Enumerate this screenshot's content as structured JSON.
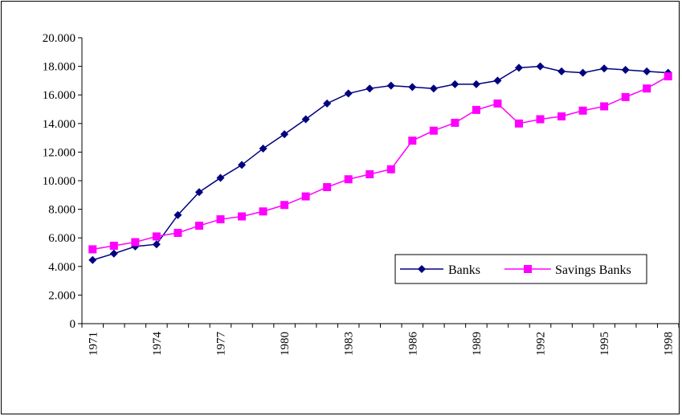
{
  "chart_data": {
    "type": "line",
    "title": "",
    "xlabel": "",
    "ylabel": "",
    "x": [
      1971,
      1972,
      1973,
      1974,
      1975,
      1976,
      1977,
      1978,
      1979,
      1980,
      1981,
      1982,
      1983,
      1984,
      1985,
      1986,
      1987,
      1988,
      1989,
      1990,
      1991,
      1992,
      1993,
      1994,
      1995,
      1996,
      1997,
      1998
    ],
    "x_tick_labels": [
      "1971",
      "1974",
      "1977",
      "1980",
      "1983",
      "1986",
      "1989",
      "1992",
      "1995",
      "1998"
    ],
    "ylim": [
      0,
      20000
    ],
    "y_tick_labels": [
      "0",
      "2.000",
      "4.000",
      "6.000",
      "8.000",
      "10.000",
      "12.000",
      "14.000",
      "16.000",
      "18.000",
      "20.000"
    ],
    "grid": false,
    "legend_placement": "bottom-right",
    "series": [
      {
        "name": "Banks",
        "color": "#000080",
        "marker": "diamond",
        "values": [
          4450,
          4900,
          5400,
          5550,
          7600,
          9200,
          10200,
          11100,
          12250,
          13250,
          14300,
          15400,
          16100,
          16450,
          16650,
          16550,
          16450,
          16750,
          16750,
          17000,
          17900,
          18000,
          17650,
          17550,
          17850,
          17750,
          17650,
          17550
        ]
      },
      {
        "name": "Savings Banks",
        "color": "#ff00ff",
        "marker": "square",
        "values": [
          5200,
          5450,
          5700,
          6100,
          6350,
          6850,
          7300,
          7500,
          7850,
          8300,
          8900,
          9550,
          10100,
          10450,
          10800,
          12800,
          13500,
          14050,
          14950,
          15400,
          14000,
          14300,
          14500,
          14900,
          15200,
          15850,
          16450,
          17300
        ]
      }
    ]
  }
}
